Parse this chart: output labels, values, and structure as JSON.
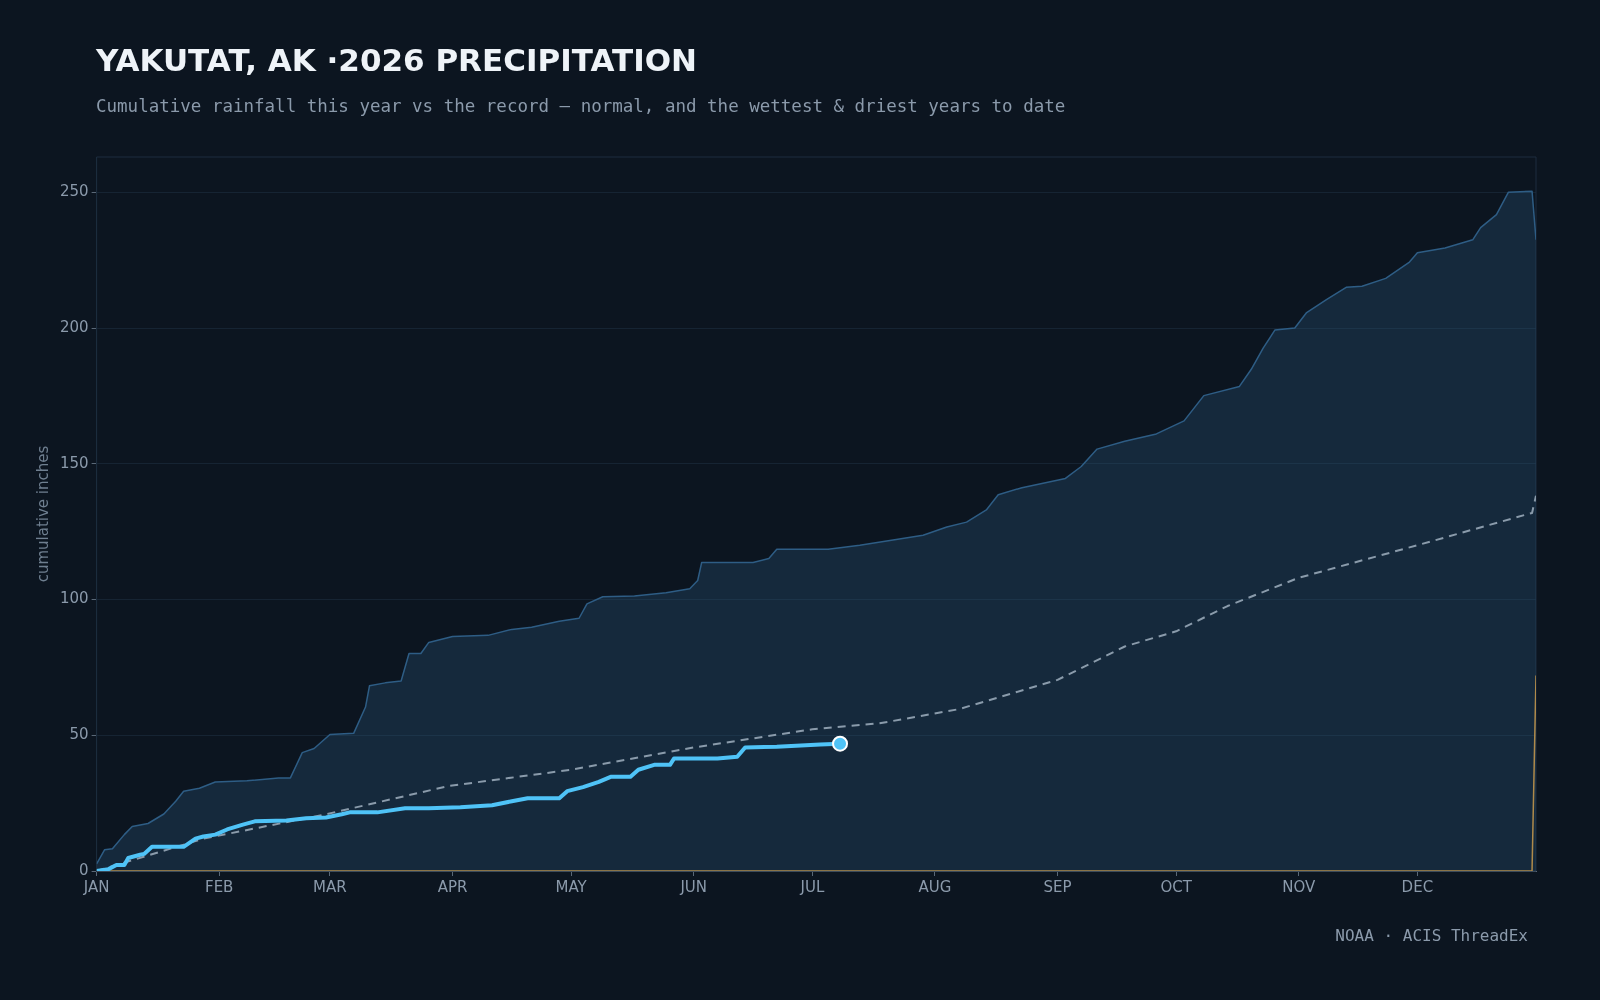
{
  "chart_data": {
    "type": "line",
    "title": "YAKUTAT, AK ·2026 PRECIPITATION",
    "subtitle": "Cumulative rainfall this year vs the record — normal, and the wettest & driest years to date",
    "ylabel": "cumulative inches",
    "annotations": [
      "NOAA · ACIS ThreadEx"
    ],
    "xlim": [
      "--01-01",
      "--12-31"
    ],
    "xticks": [
      {
        "value": "--01-01",
        "label": "JAN"
      },
      {
        "value": "--02-01",
        "label": "FEB"
      },
      {
        "value": "--03-01",
        "label": "MAR"
      },
      {
        "value": "--04-01",
        "label": "APR"
      },
      {
        "value": "--05-01",
        "label": "MAY"
      },
      {
        "value": "--06-01",
        "label": "JUN"
      },
      {
        "value": "--07-01",
        "label": "JUL"
      },
      {
        "value": "--08-01",
        "label": "AUG"
      },
      {
        "value": "--09-01",
        "label": "SEP"
      },
      {
        "value": "--10-01",
        "label": "OCT"
      },
      {
        "value": "--11-01",
        "label": "NOV"
      },
      {
        "value": "--12-01",
        "label": "DEC"
      }
    ],
    "ylim": [
      0,
      263
    ],
    "yticks": [
      0,
      50,
      100,
      150,
      200,
      250
    ],
    "grid": "y",
    "legend": false,
    "series": [
      {
        "type": "area",
        "color": "#2e5d85",
        "line_style": "solid",
        "x": [
          "--01-01",
          "--01-03",
          "--01-05",
          "--01-08",
          "--01-10",
          "--01-14",
          "--01-18",
          "--01-21",
          "--01-23",
          "--01-27",
          "--01-31",
          "--02-08",
          "--02-16",
          "--02-19",
          "--02-22",
          "--02-25",
          "--03-01",
          "--03-07",
          "--03-10",
          "--03-11",
          "--03-15",
          "--03-19",
          "--03-21",
          "--03-24",
          "--03-26",
          "--04-01",
          "--04-10",
          "--04-16",
          "--04-21",
          "--04-28",
          "--05-03",
          "--05-05",
          "--05-09",
          "--05-17",
          "--05-25",
          "--05-31",
          "--06-02",
          "--06-03",
          "--06-16",
          "--06-20",
          "--06-22",
          "--07-05",
          "--07-13",
          "--07-21",
          "--07-29",
          "--08-04",
          "--08-09",
          "--08-14",
          "--08-17",
          "--08-23",
          "--09-03",
          "--09-07",
          "--09-11",
          "--09-18",
          "--09-26",
          "--10-03",
          "--10-08",
          "--10-17",
          "--10-20",
          "--10-23",
          "--10-26",
          "--10-31",
          "--11-03",
          "--11-08",
          "--11-13",
          "--11-17",
          "--11-23",
          "--11-29",
          "--12-01",
          "--12-08",
          "--12-15",
          "--12-17",
          "--12-21",
          "--12-24",
          "--12-30",
          "--12-31"
        ],
        "values": [
          2.6,
          7.8,
          8.2,
          13.4,
          16.4,
          17.5,
          21,
          25.7,
          29.4,
          30.5,
          32.8,
          33.2,
          34.3,
          34.3,
          43.6,
          45.1,
          50.3,
          50.7,
          60.4,
          68.2,
          69.3,
          70,
          80.1,
          80.1,
          84.2,
          86.4,
          86.8,
          89,
          89.8,
          92,
          93.1,
          98.4,
          101,
          101.3,
          102.5,
          104,
          107,
          113.6,
          113.6,
          115.1,
          118.5,
          118.5,
          120,
          121.8,
          123.7,
          126.7,
          128.5,
          133,
          138.6,
          141.2,
          144.6,
          149,
          155.4,
          158.3,
          161,
          165.8,
          175.1,
          178.5,
          184.8,
          192.6,
          199.3,
          200,
          205.7,
          210.5,
          215,
          215.4,
          218.3,
          224.3,
          227.7,
          229.5,
          232.5,
          237,
          241.8,
          250,
          250.4,
          232.5
        ]
      },
      {
        "type": "line",
        "color": "#8a9bab",
        "line_style": "dashed",
        "x": [
          "--01-01",
          "--01-28",
          "--02-28",
          "--03-31",
          "--05-01",
          "--06-01",
          "--07-01",
          "--07-18",
          "--08-07",
          "--09-01",
          "--09-18",
          "--10-01",
          "--10-14",
          "--11-01",
          "--12-01",
          "--12-30",
          "--12-31"
        ],
        "values": [
          0,
          11.9,
          20.9,
          31.3,
          37.3,
          45.5,
          52.2,
          54.4,
          59.6,
          70.4,
          82.7,
          88.3,
          97.6,
          108,
          120,
          131.9,
          138.2
        ]
      },
      {
        "type": "line",
        "color": "#b08a4a",
        "line_style": "solid",
        "x": [
          "--01-01",
          "--12-30",
          "--12-31"
        ],
        "values": [
          0,
          0,
          72
        ]
      },
      {
        "type": "line",
        "color": "#4fc3f7",
        "line_style": "solid",
        "x": [
          "--01-01",
          "--01-04",
          "--01-06",
          "--01-08",
          "--01-09",
          "--01-12",
          "--01-13",
          "--01-15",
          "--01-23",
          "--01-26",
          "--01-28",
          "--01-31",
          "--02-03",
          "--02-07",
          "--02-10",
          "--02-18",
          "--02-23",
          "--02-28",
          "--03-04",
          "--03-06",
          "--03-13",
          "--03-20",
          "--03-26",
          "--04-03",
          "--04-11",
          "--04-16",
          "--04-20",
          "--04-28",
          "--04-30",
          "--05-04",
          "--05-08",
          "--05-11",
          "--05-16",
          "--05-18",
          "--05-22",
          "--05-26",
          "--05-27",
          "--06-07",
          "--06-12",
          "--06-14",
          "--06-22",
          "--07-03",
          "--07-08"
        ],
        "values": [
          0,
          0.7,
          2.2,
          2.2,
          4.8,
          6,
          6.3,
          8.9,
          8.9,
          11.9,
          12.7,
          13.4,
          15.3,
          17.1,
          18.3,
          18.6,
          19.4,
          19.7,
          20.9,
          21.6,
          21.6,
          23.1,
          23.1,
          23.5,
          24.2,
          25.7,
          26.8,
          26.8,
          29.4,
          30.9,
          32.8,
          34.7,
          34.7,
          37.3,
          39.1,
          39.1,
          41.4,
          41.4,
          42.1,
          45.5,
          45.8,
          46.6,
          46.9
        ]
      },
      {
        "type": "scatter",
        "color": "#4fc3f7",
        "marker": "circle",
        "x": [
          "--07-08"
        ],
        "values": [
          46.9
        ]
      }
    ]
  }
}
